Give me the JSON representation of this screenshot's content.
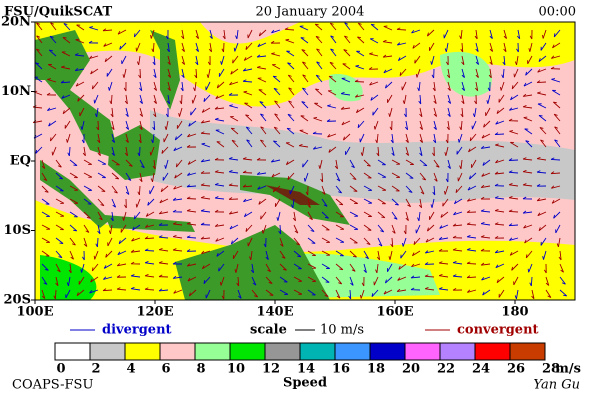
{
  "header": {
    "left": "FSU/QuikSCAT",
    "center": "20 January 2004",
    "right": "00:00"
  },
  "map": {
    "lat_labels": [
      "20N",
      "10N",
      "EQ",
      "10S",
      "20S"
    ],
    "lon_labels": [
      "100E",
      "120E",
      "140E",
      "160E",
      "180"
    ]
  },
  "legend": {
    "divergent": "divergent",
    "scale": "scale",
    "scale_value": "10 m/s",
    "convergent": "convergent"
  },
  "colorbar": {
    "ticks": [
      0,
      2,
      4,
      6,
      8,
      10,
      12,
      14,
      16,
      18,
      20,
      22,
      24,
      26,
      28
    ],
    "unit": "m/s",
    "title": "Speed",
    "colors": [
      "#ffffff",
      "#c8c8c8",
      "#ffff00",
      "#ffc8c8",
      "#96ff96",
      "#00e600",
      "#969696",
      "#00b4b4",
      "#3c96ff",
      "#0000c8",
      "#ff64ff",
      "#b482ff",
      "#ff0000",
      "#c83c00",
      "#000000"
    ]
  },
  "footer": {
    "left": "COAPS-FSU",
    "right": "Yan Gu"
  }
}
